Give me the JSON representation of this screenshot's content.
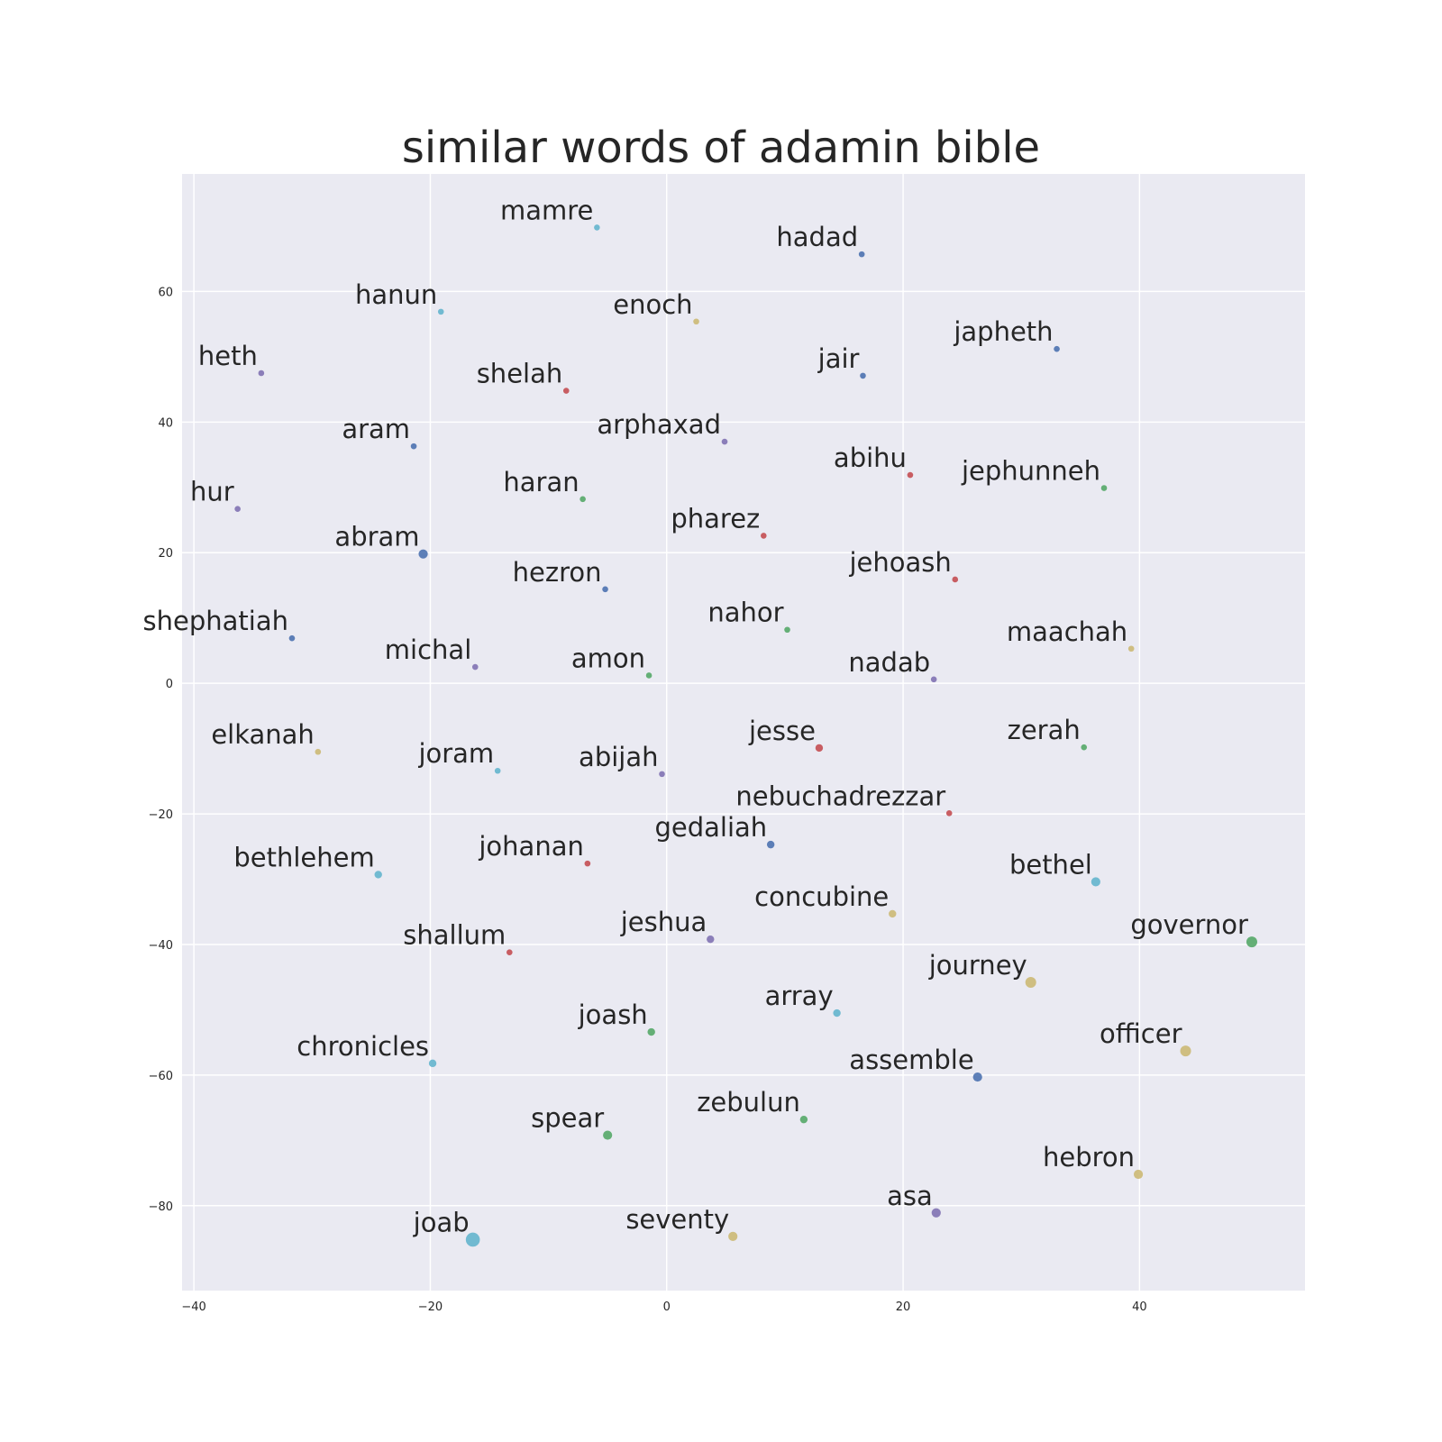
{
  "chart_data": {
    "type": "scatter",
    "title": "similar words of adamin bible",
    "xlabel": "",
    "ylabel": "",
    "xlim": [
      -41,
      54
    ],
    "ylim": [
      -93,
      78
    ],
    "grid": true,
    "x_ticks": [
      -40,
      -20,
      0,
      20,
      40
    ],
    "y_ticks": [
      60,
      40,
      20,
      0,
      -20,
      -40,
      -60,
      -80
    ],
    "x_tick_labels": [
      "−40",
      "−20",
      "0",
      "20",
      "40"
    ],
    "y_tick_labels": [
      "60",
      "40",
      "20",
      "0",
      "−20",
      "−40",
      "−60",
      "−80"
    ],
    "colors": {
      "blue": "#4c72b0",
      "green": "#55a868",
      "red": "#c44e52",
      "purple": "#8172b2",
      "yellow": "#ccb974",
      "cyan": "#64b5cd",
      "plot_bg": "#eaeaf2",
      "grid": "#ffffff"
    },
    "points": [
      {
        "word": "mamre",
        "x": -5.9,
        "y": 69.8,
        "color": "cyan",
        "size": 2
      },
      {
        "word": "hadad",
        "x": 16.5,
        "y": 65.7,
        "color": "blue",
        "size": 2
      },
      {
        "word": "hanun",
        "x": -19.1,
        "y": 56.9,
        "color": "cyan",
        "size": 2
      },
      {
        "word": "enoch",
        "x": 2.5,
        "y": 55.4,
        "color": "yellow",
        "size": 2
      },
      {
        "word": "japheth",
        "x": 33.0,
        "y": 51.2,
        "color": "blue",
        "size": 2
      },
      {
        "word": "heth",
        "x": -34.3,
        "y": 47.5,
        "color": "purple",
        "size": 2
      },
      {
        "word": "jair",
        "x": 16.6,
        "y": 47.1,
        "color": "blue",
        "size": 2
      },
      {
        "word": "shelah",
        "x": -8.5,
        "y": 44.8,
        "color": "red",
        "size": 2
      },
      {
        "word": "aram",
        "x": -21.4,
        "y": 36.3,
        "color": "blue",
        "size": 2
      },
      {
        "word": "arphaxad",
        "x": 4.9,
        "y": 37.0,
        "color": "purple",
        "size": 2
      },
      {
        "word": "abihu",
        "x": 20.6,
        "y": 31.9,
        "color": "red",
        "size": 2
      },
      {
        "word": "jephunneh",
        "x": 37.0,
        "y": 29.9,
        "color": "green",
        "size": 2
      },
      {
        "word": "hur",
        "x": -36.3,
        "y": 26.7,
        "color": "purple",
        "size": 2
      },
      {
        "word": "haran",
        "x": -7.1,
        "y": 28.2,
        "color": "green",
        "size": 2
      },
      {
        "word": "pharez",
        "x": 8.2,
        "y": 22.6,
        "color": "red",
        "size": 2
      },
      {
        "word": "abram",
        "x": -20.6,
        "y": 19.8,
        "color": "blue",
        "size": 4
      },
      {
        "word": "hezron",
        "x": -5.2,
        "y": 14.4,
        "color": "blue",
        "size": 2
      },
      {
        "word": "jehoash",
        "x": 24.4,
        "y": 15.9,
        "color": "red",
        "size": 2
      },
      {
        "word": "shephatiah",
        "x": -31.7,
        "y": 6.9,
        "color": "blue",
        "size": 2
      },
      {
        "word": "nahor",
        "x": 10.2,
        "y": 8.2,
        "color": "green",
        "size": 2
      },
      {
        "word": "maachah",
        "x": 39.3,
        "y": 5.3,
        "color": "yellow",
        "size": 2
      },
      {
        "word": "michal",
        "x": -16.2,
        "y": 2.5,
        "color": "purple",
        "size": 2
      },
      {
        "word": "amon",
        "x": -1.5,
        "y": 1.2,
        "color": "green",
        "size": 2
      },
      {
        "word": "nadab",
        "x": 22.6,
        "y": 0.6,
        "color": "purple",
        "size": 2
      },
      {
        "word": "jesse",
        "x": 12.9,
        "y": -9.9,
        "color": "red",
        "size": 3
      },
      {
        "word": "zerah",
        "x": 35.3,
        "y": -9.8,
        "color": "green",
        "size": 2
      },
      {
        "word": "elkanah",
        "x": -29.5,
        "y": -10.5,
        "color": "yellow",
        "size": 2
      },
      {
        "word": "joram",
        "x": -14.3,
        "y": -13.4,
        "color": "cyan",
        "size": 2
      },
      {
        "word": "abijah",
        "x": -0.4,
        "y": -13.9,
        "color": "purple",
        "size": 2
      },
      {
        "word": "nebuchadrezzar",
        "x": 23.9,
        "y": -19.9,
        "color": "red",
        "size": 2
      },
      {
        "word": "gedaliah",
        "x": 8.8,
        "y": -24.7,
        "color": "blue",
        "size": 3
      },
      {
        "word": "johanan",
        "x": -6.7,
        "y": -27.6,
        "color": "red",
        "size": 2
      },
      {
        "word": "bethlehem",
        "x": -24.4,
        "y": -29.3,
        "color": "cyan",
        "size": 3
      },
      {
        "word": "bethel",
        "x": 36.3,
        "y": -30.4,
        "color": "cyan",
        "size": 4
      },
      {
        "word": "concubine",
        "x": 19.1,
        "y": -35.3,
        "color": "yellow",
        "size": 3
      },
      {
        "word": "jeshua",
        "x": 3.7,
        "y": -39.2,
        "color": "purple",
        "size": 3
      },
      {
        "word": "governor",
        "x": 49.5,
        "y": -39.6,
        "color": "green",
        "size": 5
      },
      {
        "word": "shallum",
        "x": -13.3,
        "y": -41.2,
        "color": "red",
        "size": 2
      },
      {
        "word": "journey",
        "x": 30.8,
        "y": -45.8,
        "color": "yellow",
        "size": 5
      },
      {
        "word": "array",
        "x": 14.4,
        "y": -50.5,
        "color": "cyan",
        "size": 3
      },
      {
        "word": "joash",
        "x": -1.3,
        "y": -53.4,
        "color": "green",
        "size": 3
      },
      {
        "word": "officer",
        "x": 43.9,
        "y": -56.3,
        "color": "yellow",
        "size": 5
      },
      {
        "word": "chronicles",
        "x": -19.8,
        "y": -58.2,
        "color": "cyan",
        "size": 3
      },
      {
        "word": "assemble",
        "x": 26.3,
        "y": -60.3,
        "color": "blue",
        "size": 4
      },
      {
        "word": "zebulun",
        "x": 11.6,
        "y": -66.8,
        "color": "green",
        "size": 3
      },
      {
        "word": "spear",
        "x": -5.0,
        "y": -69.2,
        "color": "green",
        "size": 4
      },
      {
        "word": "hebron",
        "x": 39.9,
        "y": -75.2,
        "color": "yellow",
        "size": 4
      },
      {
        "word": "asa",
        "x": 22.8,
        "y": -81.1,
        "color": "purple",
        "size": 4
      },
      {
        "word": "joab",
        "x": -16.4,
        "y": -85.2,
        "color": "cyan",
        "size": 7
      },
      {
        "word": "seventy",
        "x": 5.6,
        "y": -84.7,
        "color": "yellow",
        "size": 4
      }
    ]
  }
}
